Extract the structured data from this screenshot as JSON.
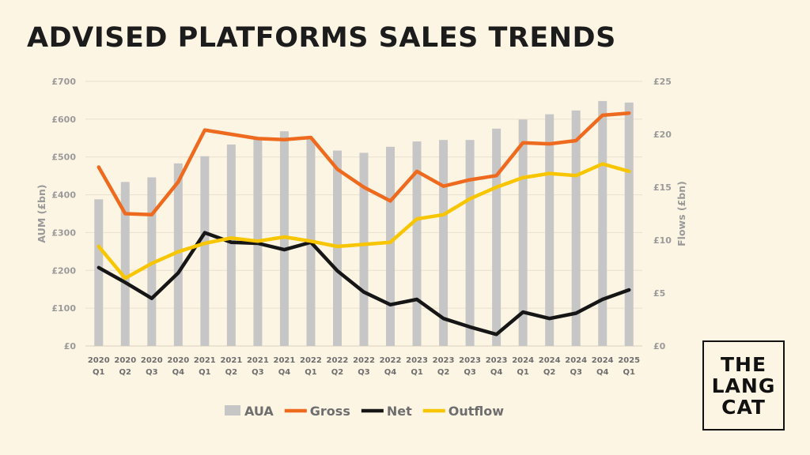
{
  "title": "ADVISED PLATFORMS SALES TRENDS",
  "logo": {
    "line1": "THE",
    "line2": "LANG",
    "line3": "CAT"
  },
  "colors": {
    "aua": "#c6c6c6",
    "gross": "#ee6a1f",
    "net": "#161616",
    "outflow": "#f8c600"
  },
  "chart_data": {
    "type": "bar",
    "categories": [
      [
        "2020",
        "Q1"
      ],
      [
        "2020",
        "Q2"
      ],
      [
        "2020",
        "Q3"
      ],
      [
        "2020",
        "Q4"
      ],
      [
        "2021",
        "Q1"
      ],
      [
        "2021",
        "Q2"
      ],
      [
        "2021",
        "Q3"
      ],
      [
        "2021",
        "Q4"
      ],
      [
        "2022",
        "Q1"
      ],
      [
        "2022",
        "Q2"
      ],
      [
        "2022",
        "Q3"
      ],
      [
        "2022",
        "Q4"
      ],
      [
        "2023",
        "Q1"
      ],
      [
        "2023",
        "Q2"
      ],
      [
        "2023",
        "Q3"
      ],
      [
        "2023",
        "Q4"
      ],
      [
        "2024",
        "Q1"
      ],
      [
        "2024",
        "Q2"
      ],
      [
        "2024",
        "Q3"
      ],
      [
        "2024",
        "Q4"
      ],
      [
        "2025",
        "Q1"
      ]
    ],
    "left_axis": {
      "label": "AUM (£bn)",
      "min": 0,
      "max": 700,
      "ticks": [
        {
          "value": 0,
          "label": "£0"
        },
        {
          "value": 100,
          "label": "£100"
        },
        {
          "value": 200,
          "label": "£200"
        },
        {
          "value": 300,
          "label": "£300"
        },
        {
          "value": 400,
          "label": "£400"
        },
        {
          "value": 500,
          "label": "£500"
        },
        {
          "value": 600,
          "label": "£600"
        },
        {
          "value": 700,
          "label": "£700"
        }
      ]
    },
    "right_axis": {
      "label": "Flows (£bn)",
      "min": 0,
      "max": 25,
      "ticks": [
        {
          "value": 0,
          "label": "£0"
        },
        {
          "value": 5,
          "label": "£5"
        },
        {
          "value": 10,
          "label": "£10"
        },
        {
          "value": 15,
          "label": "£15"
        },
        {
          "value": 20,
          "label": "£20"
        },
        {
          "value": 25,
          "label": "£25"
        }
      ]
    },
    "grid": true,
    "legend_position": "bottom",
    "series": [
      {
        "name": "AUA",
        "type": "bar",
        "axis": "left",
        "values": [
          388,
          434,
          446,
          483,
          502,
          533,
          550,
          568,
          547,
          517,
          511,
          527,
          541,
          545,
          545,
          575,
          599,
          613,
          623,
          648,
          644
        ]
      },
      {
        "name": "Gross",
        "type": "line",
        "axis": "right",
        "values": [
          16.9,
          12.5,
          12.4,
          15.5,
          20.4,
          20.0,
          19.6,
          19.5,
          19.7,
          16.7,
          15.0,
          13.7,
          16.5,
          15.1,
          15.7,
          16.1,
          19.2,
          19.1,
          19.4,
          21.8,
          22.0
        ]
      },
      {
        "name": "Net",
        "type": "line",
        "axis": "right",
        "values": [
          7.4,
          6.0,
          4.5,
          6.9,
          10.7,
          9.8,
          9.7,
          9.1,
          9.8,
          7.1,
          5.1,
          3.9,
          4.4,
          2.6,
          1.8,
          1.1,
          3.2,
          2.6,
          3.1,
          4.4,
          5.3
        ]
      },
      {
        "name": "Outflow",
        "type": "line",
        "axis": "right",
        "values": [
          9.4,
          6.4,
          7.8,
          8.9,
          9.7,
          10.2,
          9.9,
          10.3,
          9.9,
          9.4,
          9.6,
          9.8,
          12.0,
          12.4,
          13.9,
          15.0,
          15.9,
          16.3,
          16.1,
          17.2,
          16.5
        ]
      }
    ]
  }
}
